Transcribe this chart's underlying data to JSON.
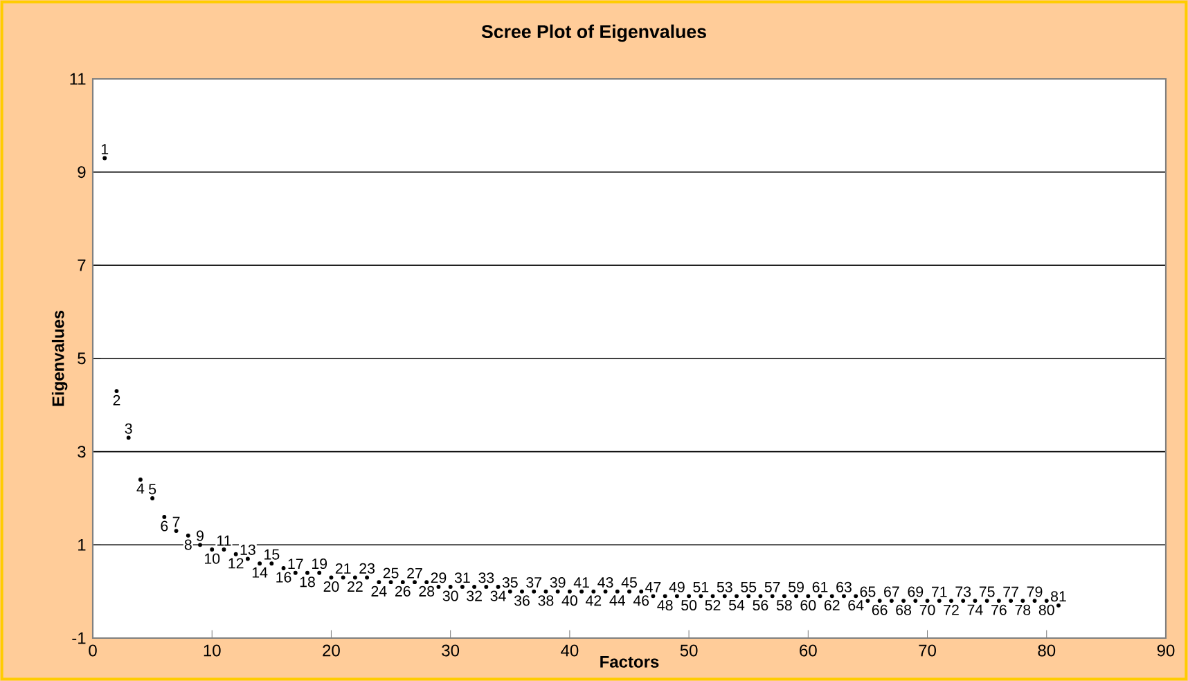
{
  "chart_data": {
    "type": "scatter",
    "title": "Scree Plot of Eigenvalues",
    "xlabel": "Factors",
    "ylabel": "Eigenvalues",
    "x": [
      1,
      2,
      3,
      4,
      5,
      6,
      7,
      8,
      9,
      10,
      11,
      12,
      13,
      14,
      15,
      16,
      17,
      18,
      19,
      20,
      21,
      22,
      23,
      24,
      25,
      26,
      27,
      28,
      29,
      30,
      31,
      32,
      33,
      34,
      35,
      36,
      37,
      38,
      39,
      40,
      41,
      42,
      43,
      44,
      45,
      46,
      47,
      48,
      49,
      50,
      51,
      52,
      53,
      54,
      55,
      56,
      57,
      58,
      59,
      60,
      61,
      62,
      63,
      64,
      65,
      66,
      67,
      68,
      69,
      70,
      71,
      72,
      73,
      74,
      75,
      76,
      77,
      78,
      79,
      80,
      81
    ],
    "values": [
      9.3,
      4.3,
      3.3,
      2.4,
      2.0,
      1.6,
      1.3,
      1.2,
      1.0,
      0.9,
      0.9,
      0.8,
      0.7,
      0.6,
      0.6,
      0.5,
      0.4,
      0.4,
      0.4,
      0.3,
      0.3,
      0.3,
      0.3,
      0.2,
      0.2,
      0.2,
      0.2,
      0.2,
      0.1,
      0.1,
      0.1,
      0.1,
      0.1,
      0.1,
      0.0,
      0.0,
      0.0,
      0.0,
      0.0,
      0.0,
      0.0,
      0.0,
      0.0,
      0.0,
      0.0,
      0.0,
      -0.1,
      -0.1,
      -0.1,
      -0.1,
      -0.1,
      -0.1,
      -0.1,
      -0.1,
      -0.1,
      -0.1,
      -0.1,
      -0.1,
      -0.1,
      -0.1,
      -0.1,
      -0.1,
      -0.1,
      -0.1,
      -0.2,
      -0.2,
      -0.2,
      -0.2,
      -0.2,
      -0.2,
      -0.2,
      -0.2,
      -0.2,
      -0.2,
      -0.2,
      -0.2,
      -0.2,
      -0.2,
      -0.2,
      -0.2,
      -0.3
    ],
    "annotations": [
      {
        "text": "1",
        "x": 1,
        "y": 9.3
      },
      {
        "text": "2",
        "x": 2,
        "y": 4.3
      },
      {
        "text": "3",
        "x": 3,
        "y": 3.3
      },
      {
        "text": "4",
        "x": 4,
        "y": 2.4
      },
      {
        "text": "5",
        "x": 5,
        "y": 2.0
      },
      {
        "text": "6",
        "x": 6,
        "y": 1.6
      },
      {
        "text": "7",
        "x": 7,
        "y": 1.3
      },
      {
        "text": "8",
        "x": 8,
        "y": 1.2
      },
      {
        "text": "9",
        "x": 9,
        "y": 1.0
      },
      {
        "text": "10",
        "x": 10,
        "y": 0.9
      },
      {
        "text": "11",
        "x": 11,
        "y": 0.9
      },
      {
        "text": "12",
        "x": 12,
        "y": 0.8
      },
      {
        "text": "13",
        "x": 13,
        "y": 0.7
      },
      {
        "text": "14",
        "x": 14,
        "y": 0.6
      },
      {
        "text": "15",
        "x": 15,
        "y": 0.6
      },
      {
        "text": "16",
        "x": 16,
        "y": 0.5
      },
      {
        "text": "17",
        "x": 17,
        "y": 0.4
      },
      {
        "text": "18",
        "x": 18,
        "y": 0.4
      },
      {
        "text": "19",
        "x": 19,
        "y": 0.4
      },
      {
        "text": "20",
        "x": 20,
        "y": 0.3
      },
      {
        "text": "21",
        "x": 21,
        "y": 0.3
      },
      {
        "text": "22",
        "x": 22,
        "y": 0.3
      },
      {
        "text": "23",
        "x": 23,
        "y": 0.3
      },
      {
        "text": "24",
        "x": 24,
        "y": 0.2
      },
      {
        "text": "25",
        "x": 25,
        "y": 0.2
      },
      {
        "text": "26",
        "x": 26,
        "y": 0.2
      },
      {
        "text": "27",
        "x": 27,
        "y": 0.2
      },
      {
        "text": "28",
        "x": 28,
        "y": 0.2
      },
      {
        "text": "29",
        "x": 29,
        "y": 0.1
      },
      {
        "text": "30",
        "x": 30,
        "y": 0.1
      },
      {
        "text": "31",
        "x": 31,
        "y": 0.1
      },
      {
        "text": "32",
        "x": 32,
        "y": 0.1
      },
      {
        "text": "33",
        "x": 33,
        "y": 0.1
      },
      {
        "text": "34",
        "x": 34,
        "y": 0.1
      },
      {
        "text": "35",
        "x": 35,
        "y": 0.0
      },
      {
        "text": "36",
        "x": 36,
        "y": 0.0
      },
      {
        "text": "37",
        "x": 37,
        "y": 0.0
      },
      {
        "text": "38",
        "x": 38,
        "y": 0.0
      },
      {
        "text": "39",
        "x": 39,
        "y": 0.0
      },
      {
        "text": "40",
        "x": 40,
        "y": 0.0
      },
      {
        "text": "41",
        "x": 41,
        "y": 0.0
      },
      {
        "text": "42",
        "x": 42,
        "y": 0.0
      },
      {
        "text": "43",
        "x": 43,
        "y": 0.0
      },
      {
        "text": "44",
        "x": 44,
        "y": 0.0
      },
      {
        "text": "45",
        "x": 45,
        "y": 0.0
      },
      {
        "text": "46",
        "x": 46,
        "y": 0.0
      },
      {
        "text": "47",
        "x": 47,
        "y": -0.1
      },
      {
        "text": "48",
        "x": 48,
        "y": -0.1
      },
      {
        "text": "49",
        "x": 49,
        "y": -0.1
      },
      {
        "text": "50",
        "x": 50,
        "y": -0.1
      },
      {
        "text": "51",
        "x": 51,
        "y": -0.1
      },
      {
        "text": "52",
        "x": 52,
        "y": -0.1
      },
      {
        "text": "53",
        "x": 53,
        "y": -0.1
      },
      {
        "text": "54",
        "x": 54,
        "y": -0.1
      },
      {
        "text": "55",
        "x": 55,
        "y": -0.1
      },
      {
        "text": "56",
        "x": 56,
        "y": -0.1
      },
      {
        "text": "57",
        "x": 57,
        "y": -0.1
      },
      {
        "text": "58",
        "x": 58,
        "y": -0.1
      },
      {
        "text": "59",
        "x": 59,
        "y": -0.1
      },
      {
        "text": "60",
        "x": 60,
        "y": -0.1
      },
      {
        "text": "61",
        "x": 61,
        "y": -0.1
      },
      {
        "text": "62",
        "x": 62,
        "y": -0.1
      },
      {
        "text": "63",
        "x": 63,
        "y": -0.1
      },
      {
        "text": "64",
        "x": 64,
        "y": -0.1
      },
      {
        "text": "65",
        "x": 65,
        "y": -0.2
      },
      {
        "text": "66",
        "x": 66,
        "y": -0.2
      },
      {
        "text": "67",
        "x": 67,
        "y": -0.2
      },
      {
        "text": "68",
        "x": 68,
        "y": -0.2
      },
      {
        "text": "69",
        "x": 69,
        "y": -0.2
      },
      {
        "text": "70",
        "x": 70,
        "y": -0.2
      },
      {
        "text": "71",
        "x": 71,
        "y": -0.2
      },
      {
        "text": "72",
        "x": 72,
        "y": -0.2
      },
      {
        "text": "73",
        "x": 73,
        "y": -0.2
      },
      {
        "text": "74",
        "x": 74,
        "y": -0.2
      },
      {
        "text": "75",
        "x": 75,
        "y": -0.2
      },
      {
        "text": "76",
        "x": 76,
        "y": -0.2
      },
      {
        "text": "77",
        "x": 77,
        "y": -0.2
      },
      {
        "text": "78",
        "x": 78,
        "y": -0.2
      },
      {
        "text": "79",
        "x": 79,
        "y": -0.2
      },
      {
        "text": "80",
        "x": 80,
        "y": -0.2
      },
      {
        "text": "81",
        "x": 81,
        "y": -0.3
      }
    ],
    "color": "#000000",
    "marker": "circle",
    "xlim": [
      0,
      90
    ],
    "xticks": [
      0,
      10,
      20,
      30,
      40,
      50,
      60,
      70,
      80,
      90
    ],
    "ylim": [
      -1,
      11
    ],
    "yticks": [
      -1,
      1,
      3,
      5,
      7,
      9,
      11
    ],
    "grid": "y"
  }
}
